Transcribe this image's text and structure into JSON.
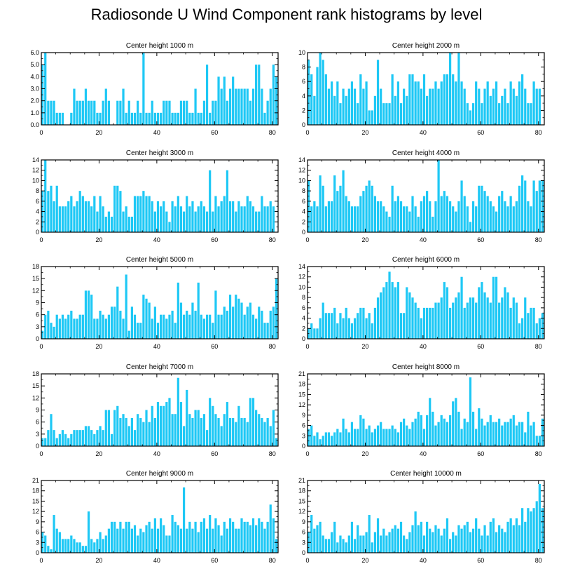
{
  "title": "Radiosonde U Wind Component rank histograms by level",
  "bar_color": "#1ec8f5",
  "chart_data": [
    {
      "type": "bar",
      "title": "Center height 1000 m",
      "xlim": [
        0,
        82
      ],
      "ylim": [
        0,
        6
      ],
      "xticks": [
        0,
        20,
        40,
        60,
        80
      ],
      "yticks": [
        0,
        1,
        2,
        3,
        4,
        5,
        6
      ],
      "ytick_labels": [
        "0.0",
        "1.0",
        "2.0",
        "3.0",
        "4.0",
        "5.0",
        "6.0"
      ],
      "values": [
        5,
        6,
        2,
        2,
        2,
        1,
        1,
        1,
        0,
        0,
        1,
        3,
        2,
        2,
        2,
        3,
        2,
        2,
        2,
        1,
        1,
        2,
        3,
        2,
        0,
        0,
        2,
        2,
        3,
        1,
        2,
        1,
        1,
        2,
        1,
        6,
        1,
        1,
        2,
        1,
        1,
        1,
        2,
        2,
        2,
        1,
        1,
        1,
        2,
        2,
        2,
        1,
        1,
        3,
        1,
        1,
        2,
        5,
        1,
        2,
        2,
        4,
        3,
        4,
        2,
        3,
        4,
        3,
        3,
        3,
        3,
        3,
        2,
        3,
        5,
        5,
        3,
        1,
        2,
        3,
        5,
        4
      ]
    },
    {
      "type": "bar",
      "title": "Center height 2000 m",
      "xlim": [
        0,
        82
      ],
      "ylim": [
        0,
        10
      ],
      "xticks": [
        0,
        20,
        40,
        60,
        80
      ],
      "yticks": [
        0,
        2,
        4,
        6,
        8,
        10
      ],
      "values": [
        9,
        7,
        4,
        8,
        10,
        9,
        7,
        5,
        6,
        4,
        6,
        3,
        5,
        4,
        5,
        6,
        5,
        3,
        7,
        5,
        6,
        2,
        2,
        4,
        9,
        5,
        3,
        3,
        3,
        7,
        4,
        6,
        3,
        5,
        4,
        7,
        7,
        6,
        6,
        5,
        7,
        4,
        5,
        5,
        6,
        5,
        6,
        7,
        7,
        10,
        7,
        6,
        10,
        6,
        5,
        3,
        2,
        3,
        6,
        5,
        3,
        5,
        6,
        4,
        5,
        6,
        3,
        4,
        5,
        3,
        6,
        5,
        4,
        6,
        7,
        5,
        3,
        3,
        6,
        5,
        5
      ]
    },
    {
      "type": "bar",
      "title": "Center height 3000 m",
      "xlim": [
        0,
        82
      ],
      "ylim": [
        0,
        14
      ],
      "xticks": [
        0,
        20,
        40,
        60,
        80
      ],
      "yticks": [
        0,
        2,
        4,
        6,
        8,
        10,
        12,
        14
      ],
      "values": [
        8,
        14,
        8,
        9,
        6,
        9,
        5,
        5,
        5,
        6,
        7,
        5,
        6,
        8,
        7,
        6,
        6,
        5,
        7,
        4,
        7,
        5,
        3,
        4,
        3,
        9,
        9,
        8,
        4,
        5,
        3,
        3,
        7,
        7,
        7,
        8,
        7,
        7,
        6,
        4,
        6,
        5,
        6,
        4,
        2,
        6,
        5,
        7,
        5,
        4,
        7,
        5,
        6,
        4,
        5,
        6,
        5,
        4,
        12,
        4,
        7,
        5,
        6,
        7,
        12,
        6,
        6,
        4,
        6,
        5,
        5,
        7,
        6,
        5,
        4,
        4,
        7,
        5,
        5,
        6,
        5
      ]
    },
    {
      "type": "bar",
      "title": "Center height 4000 m",
      "xlim": [
        0,
        82
      ],
      "ylim": [
        0,
        14
      ],
      "xticks": [
        0,
        20,
        40,
        60,
        80
      ],
      "yticks": [
        0,
        2,
        4,
        6,
        8,
        10,
        12,
        14
      ],
      "values": [
        10,
        5,
        6,
        5,
        11,
        9,
        5,
        6,
        6,
        11,
        8,
        9,
        12,
        7,
        6,
        5,
        5,
        5,
        7,
        8,
        9,
        10,
        9,
        7,
        6,
        6,
        5,
        4,
        3,
        9,
        6,
        7,
        6,
        5,
        5,
        4,
        7,
        5,
        3,
        6,
        7,
        8,
        6,
        3,
        6,
        14,
        7,
        8,
        7,
        6,
        5,
        4,
        6,
        10,
        7,
        5,
        2,
        6,
        5,
        9,
        9,
        8,
        7,
        6,
        5,
        4,
        7,
        8,
        6,
        5,
        7,
        5,
        6,
        9,
        11,
        10,
        6,
        5,
        10,
        8,
        10,
        10
      ]
    },
    {
      "type": "bar",
      "title": "Center height 5000 m",
      "xlim": [
        0,
        82
      ],
      "ylim": [
        0,
        18
      ],
      "xticks": [
        0,
        20,
        40,
        60,
        80
      ],
      "yticks": [
        0,
        3,
        6,
        9,
        12,
        15,
        18
      ],
      "values": [
        2,
        6,
        7,
        4,
        3,
        6,
        5,
        6,
        5,
        6,
        7,
        5,
        5,
        6,
        6,
        12,
        12,
        11,
        5,
        5,
        7,
        6,
        5,
        6,
        8,
        8,
        13,
        7,
        5,
        16,
        2,
        8,
        6,
        4,
        4,
        11,
        10,
        9,
        5,
        8,
        4,
        6,
        6,
        5,
        6,
        7,
        4,
        14,
        9,
        6,
        7,
        6,
        9,
        7,
        14,
        6,
        5,
        6,
        6,
        4,
        12,
        6,
        6,
        8,
        7,
        11,
        8,
        11,
        10,
        9,
        6,
        8,
        9,
        6,
        5,
        8,
        7,
        4,
        4,
        7,
        8,
        15
      ]
    },
    {
      "type": "bar",
      "title": "Center height 6000 m",
      "xlim": [
        0,
        82
      ],
      "ylim": [
        0,
        14
      ],
      "xticks": [
        0,
        20,
        40,
        60,
        80
      ],
      "yticks": [
        0,
        2,
        4,
        6,
        8,
        10,
        12,
        14
      ],
      "values": [
        2,
        3,
        2,
        2,
        4,
        7,
        5,
        5,
        5,
        6,
        3,
        5,
        4,
        6,
        4,
        3,
        4,
        5,
        6,
        6,
        4,
        5,
        3,
        6,
        8,
        9,
        10,
        11,
        13,
        11,
        10,
        11,
        5,
        5,
        10,
        9,
        8,
        7,
        6,
        4,
        6,
        6,
        6,
        6,
        7,
        7,
        8,
        11,
        10,
        6,
        7,
        8,
        9,
        12,
        6,
        7,
        8,
        8,
        7,
        10,
        11,
        9,
        8,
        7,
        12,
        12,
        7,
        8,
        10,
        9,
        6,
        8,
        7,
        3,
        4,
        8,
        5,
        6,
        6,
        3,
        4,
        5
      ]
    },
    {
      "type": "bar",
      "title": "Center height 7000 m",
      "xlim": [
        0,
        82
      ],
      "ylim": [
        0,
        18
      ],
      "xticks": [
        0,
        20,
        40,
        60,
        80
      ],
      "yticks": [
        0,
        3,
        6,
        9,
        12,
        15,
        18
      ],
      "values": [
        2,
        2,
        4,
        8,
        4,
        2,
        3,
        4,
        3,
        2,
        3,
        4,
        4,
        4,
        4,
        5,
        5,
        4,
        3,
        4,
        5,
        4,
        9,
        9,
        3,
        9,
        10,
        7,
        8,
        7,
        5,
        7,
        4,
        8,
        7,
        6,
        9,
        6,
        10,
        7,
        11,
        10,
        10,
        11,
        12,
        8,
        8,
        17,
        11,
        5,
        14,
        8,
        7,
        9,
        9,
        7,
        8,
        4,
        12,
        10,
        8,
        7,
        5,
        8,
        11,
        7,
        7,
        6,
        10,
        7,
        7,
        6,
        12,
        12,
        9,
        8,
        7,
        6,
        7,
        5,
        9,
        2
      ]
    },
    {
      "type": "bar",
      "title": "Center height 8000 m",
      "xlim": [
        0,
        82
      ],
      "ylim": [
        0,
        21
      ],
      "xticks": [
        0,
        20,
        40,
        60,
        80
      ],
      "yticks": [
        0,
        3,
        6,
        9,
        12,
        15,
        18,
        21
      ],
      "values": [
        5,
        6,
        3,
        4,
        2,
        3,
        4,
        4,
        3,
        4,
        5,
        4,
        8,
        5,
        4,
        7,
        5,
        5,
        9,
        8,
        5,
        6,
        4,
        5,
        6,
        7,
        5,
        5,
        5,
        6,
        5,
        4,
        7,
        8,
        6,
        5,
        7,
        8,
        10,
        9,
        5,
        9,
        14,
        10,
        6,
        7,
        9,
        8,
        7,
        9,
        13,
        14,
        10,
        5,
        8,
        7,
        20,
        10,
        5,
        11,
        8,
        6,
        7,
        9,
        7,
        7,
        8,
        6,
        7,
        7,
        8,
        9,
        6,
        7,
        7,
        4,
        10,
        6,
        7,
        3,
        3,
        8
      ]
    },
    {
      "type": "bar",
      "title": "Center height 9000 m",
      "xlim": [
        0,
        82
      ],
      "ylim": [
        0,
        21
      ],
      "xticks": [
        0,
        20,
        40,
        60,
        80
      ],
      "yticks": [
        0,
        3,
        6,
        9,
        12,
        15,
        18,
        21
      ],
      "values": [
        6,
        5,
        2,
        1,
        11,
        7,
        6,
        4,
        4,
        4,
        5,
        4,
        3,
        3,
        2,
        2,
        12,
        4,
        3,
        4,
        6,
        4,
        5,
        7,
        9,
        9,
        7,
        9,
        7,
        9,
        9,
        7,
        8,
        5,
        7,
        6,
        8,
        9,
        7,
        10,
        7,
        10,
        8,
        5,
        5,
        11,
        9,
        8,
        7,
        19,
        7,
        9,
        7,
        9,
        6,
        9,
        10,
        7,
        11,
        7,
        10,
        8,
        5,
        9,
        7,
        10,
        9,
        7,
        7,
        10,
        9,
        9,
        8,
        10,
        8,
        10,
        9,
        7,
        9,
        14,
        10,
        4
      ]
    },
    {
      "type": "bar",
      "title": "Center height 10000 m",
      "xlim": [
        0,
        82
      ],
      "ylim": [
        0,
        21
      ],
      "xticks": [
        0,
        20,
        40,
        60,
        80
      ],
      "yticks": [
        0,
        3,
        6,
        9,
        12,
        15,
        18,
        21
      ],
      "values": [
        6,
        11,
        7,
        8,
        9,
        5,
        4,
        4,
        6,
        9,
        3,
        5,
        4,
        3,
        5,
        9,
        4,
        8,
        5,
        5,
        6,
        11,
        3,
        6,
        10,
        5,
        7,
        5,
        6,
        7,
        8,
        7,
        9,
        5,
        4,
        6,
        8,
        12,
        8,
        9,
        5,
        9,
        7,
        6,
        8,
        7,
        5,
        7,
        10,
        4,
        6,
        5,
        8,
        7,
        8,
        9,
        6,
        7,
        10,
        7,
        5,
        8,
        5,
        9,
        10,
        6,
        8,
        7,
        6,
        9,
        10,
        8,
        10,
        8,
        13,
        9,
        13,
        12,
        13,
        15,
        20,
        13
      ]
    }
  ]
}
